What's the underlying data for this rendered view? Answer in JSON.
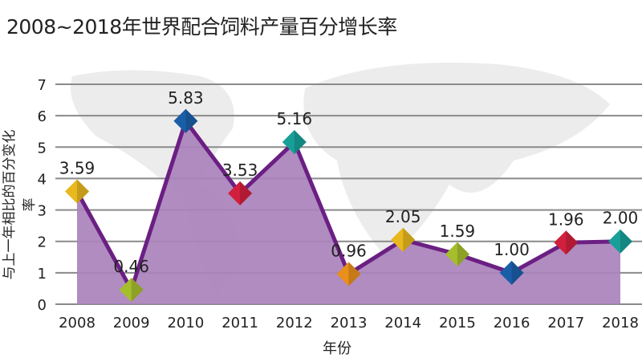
{
  "chart_data": {
    "type": "area",
    "title": "2008~2018年世界配合饲料产量百分增长率",
    "xlabel": "年份",
    "ylabel": "与上一年相比的百分变化率",
    "categories": [
      "2008",
      "2009",
      "2010",
      "2011",
      "2012",
      "2013",
      "2014",
      "2015",
      "2016",
      "2017",
      "2018"
    ],
    "values": [
      3.59,
      0.46,
      5.83,
      3.53,
      5.16,
      0.96,
      2.05,
      1.59,
      1.0,
      1.96,
      2.0
    ],
    "data_labels": [
      "3.59",
      "0.46",
      "5.83",
      "3.53",
      "5.16",
      "0.96",
      "2.05",
      "1.59",
      "1.00",
      "1.96",
      "2.00"
    ],
    "ylim": [
      0,
      7
    ],
    "yticks": [
      "0",
      "1",
      "2",
      "3",
      "4",
      "5",
      "6",
      "7"
    ],
    "grid": true,
    "colors": {
      "fill": "#a982bb",
      "line": "#6b1f83",
      "grid": "#8a8a8a",
      "markers": [
        "#e8b81e",
        "#a5be2c",
        "#1b5ea8",
        "#d11f3d",
        "#179f98",
        "#e88f1c",
        "#e8b81e",
        "#a5be2c",
        "#1b5ea8",
        "#d11f3d",
        "#179f98"
      ]
    }
  }
}
